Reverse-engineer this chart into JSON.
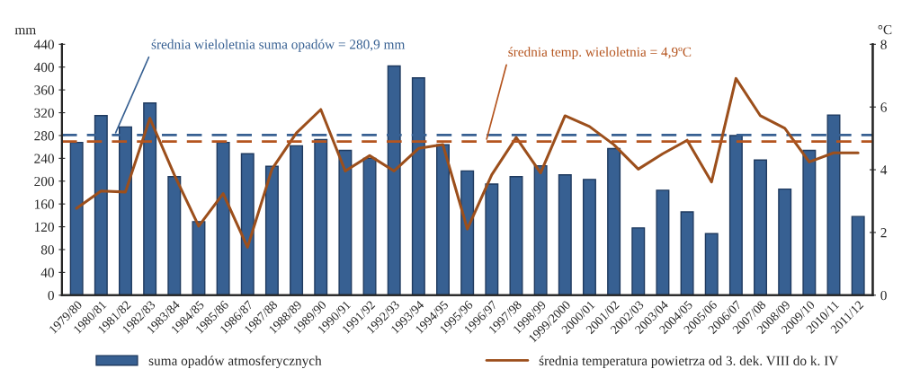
{
  "chart_data": {
    "type": "bar",
    "ylabel": "mm",
    "y2label": "°C",
    "categories": [
      "1979/80",
      "1980/81",
      "1981/82",
      "1982/83",
      "1983/84",
      "1984/85",
      "1985/86",
      "1986/87",
      "1987/88",
      "1988/89",
      "1989/90",
      "1990/91",
      "1991/92",
      "1992/93",
      "1993/94",
      "1994/95",
      "1995/96",
      "1996/97",
      "1997/98",
      "1998/99",
      "1999/2000",
      "2000/01",
      "2001/02",
      "2002/03",
      "2003/04",
      "2004/05",
      "2005/06",
      "2006/07",
      "2007/08",
      "2008/09",
      "2009/10",
      "2010/11",
      "2011/12"
    ],
    "series": [
      {
        "name": "suma opadów atmosferycznych",
        "color": "#376092",
        "values": [
          268,
          315,
          295,
          337,
          208,
          129,
          268,
          248,
          226,
          262,
          273,
          254,
          240,
          402,
          381,
          264,
          218,
          195,
          208,
          227,
          211,
          203,
          257,
          118,
          184,
          146,
          108,
          280,
          237,
          186,
          254,
          316,
          138
        ]
      },
      {
        "name": "średnia temperatura powietrza od 3. dek. VIII do k. IV",
        "type": "line",
        "axis": "y2",
        "color": "#9c4f1c",
        "marker": "none",
        "line_style": "solid",
        "values": [
          2.77,
          3.32,
          3.29,
          5.64,
          3.84,
          2.2,
          3.24,
          1.53,
          4.02,
          5.17,
          5.92,
          3.96,
          4.45,
          3.96,
          4.68,
          4.8,
          2.11,
          3.84,
          5.03,
          3.9,
          5.72,
          5.38,
          4.8,
          4.02,
          4.51,
          4.94,
          3.61,
          6.91,
          5.72,
          5.32,
          4.25,
          4.54,
          4.54
        ]
      }
    ],
    "ylim": [
      0,
      440
    ],
    "yticks": [
      0,
      40,
      80,
      120,
      160,
      200,
      240,
      280,
      320,
      360,
      400,
      440
    ],
    "y2lim": [
      0,
      8
    ],
    "y2ticks": [
      0,
      2,
      4,
      6,
      8
    ],
    "ref_lines": [
      {
        "axis": "y",
        "value": 280.9,
        "label": "średnia wieloletnia suma opadów = 280,9 mm",
        "color": "#376092",
        "line_style": "dashed"
      },
      {
        "axis": "y2",
        "value": 4.9,
        "label": "średnia temp. wieloletnia = 4,9ºC",
        "color": "#b5551f",
        "line_style": "dashed"
      }
    ],
    "grid": false,
    "legend": "bottom"
  }
}
